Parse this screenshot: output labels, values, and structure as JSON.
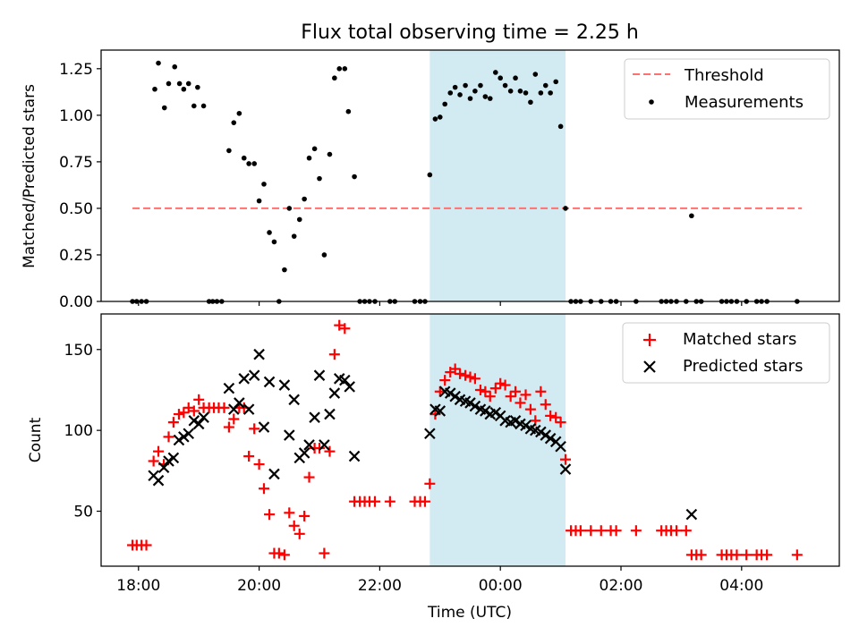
{
  "figure": {
    "title": "Flux total observing time = 2.25 h",
    "xlabel": "Time (UTC)"
  },
  "colors": {
    "highlight": "#add8e6",
    "threshold": "#ff7070",
    "measurement": "#000000",
    "matched": "#ff0000",
    "predicted": "#000000"
  },
  "chart_data": [
    {
      "type": "scatter",
      "ylabel": "Matched/Predicted stars",
      "x_unit": "hours since 18:00 UTC",
      "xlim": [
        -0.62,
        11.62
      ],
      "ylim": [
        0,
        1.35
      ],
      "yticks": [
        0,
        0.25,
        0.5,
        0.75,
        1.0,
        1.25
      ],
      "ytick_labels": [
        "0.00",
        "0.25",
        "0.50",
        "0.75",
        "1.00",
        "1.25"
      ],
      "grid": false,
      "legend": {
        "position": "top-right",
        "entries": [
          "Threshold",
          "Measurements"
        ]
      },
      "highlight_span": [
        4.83,
        7.08
      ],
      "threshold": {
        "name": "Threshold",
        "y": 0.5,
        "x_range": [
          -0.1,
          11.0
        ]
      },
      "measurements_name": "Measurements",
      "measurements": [
        [
          -0.1,
          0
        ],
        [
          -0.03,
          0
        ],
        [
          0.05,
          0
        ],
        [
          0.13,
          0
        ],
        [
          0.27,
          1.14
        ],
        [
          0.33,
          1.28
        ],
        [
          0.43,
          1.04
        ],
        [
          0.5,
          1.17
        ],
        [
          0.6,
          1.26
        ],
        [
          0.68,
          1.17
        ],
        [
          0.75,
          1.14
        ],
        [
          0.83,
          1.17
        ],
        [
          0.92,
          1.05
        ],
        [
          0.98,
          1.15
        ],
        [
          1.08,
          1.05
        ],
        [
          1.17,
          0
        ],
        [
          1.23,
          0
        ],
        [
          1.3,
          0
        ],
        [
          1.38,
          0
        ],
        [
          1.5,
          0.81
        ],
        [
          1.58,
          0.96
        ],
        [
          1.67,
          1.01
        ],
        [
          1.75,
          0.77
        ],
        [
          1.83,
          0.74
        ],
        [
          1.92,
          0.74
        ],
        [
          2.0,
          0.54
        ],
        [
          2.08,
          0.63
        ],
        [
          2.17,
          0.37
        ],
        [
          2.25,
          0.32
        ],
        [
          2.33,
          0
        ],
        [
          2.42,
          0.17
        ],
        [
          2.5,
          0.5
        ],
        [
          2.58,
          0.35
        ],
        [
          2.67,
          0.44
        ],
        [
          2.75,
          0.55
        ],
        [
          2.83,
          0.77
        ],
        [
          2.92,
          0.82
        ],
        [
          3.0,
          0.66
        ],
        [
          3.08,
          0.25
        ],
        [
          3.17,
          0.79
        ],
        [
          3.25,
          1.2
        ],
        [
          3.33,
          1.25
        ],
        [
          3.42,
          1.25
        ],
        [
          3.48,
          1.02
        ],
        [
          3.58,
          0.67
        ],
        [
          3.67,
          0
        ],
        [
          3.75,
          0
        ],
        [
          3.83,
          0
        ],
        [
          3.92,
          0
        ],
        [
          4.17,
          0
        ],
        [
          4.25,
          0
        ],
        [
          4.58,
          0
        ],
        [
          4.67,
          0
        ],
        [
          4.75,
          0
        ],
        [
          4.83,
          0.68
        ],
        [
          4.92,
          0.98
        ],
        [
          5.0,
          0.99
        ],
        [
          5.08,
          1.06
        ],
        [
          5.17,
          1.12
        ],
        [
          5.25,
          1.15
        ],
        [
          5.33,
          1.11
        ],
        [
          5.42,
          1.16
        ],
        [
          5.5,
          1.09
        ],
        [
          5.58,
          1.13
        ],
        [
          5.67,
          1.16
        ],
        [
          5.75,
          1.1
        ],
        [
          5.83,
          1.09
        ],
        [
          5.92,
          1.23
        ],
        [
          6.0,
          1.2
        ],
        [
          6.08,
          1.16
        ],
        [
          6.17,
          1.13
        ],
        [
          6.25,
          1.2
        ],
        [
          6.33,
          1.13
        ],
        [
          6.42,
          1.12
        ],
        [
          6.5,
          1.07
        ],
        [
          6.58,
          1.22
        ],
        [
          6.67,
          1.12
        ],
        [
          6.75,
          1.16
        ],
        [
          6.83,
          1.12
        ],
        [
          6.92,
          1.18
        ],
        [
          7.0,
          0.94
        ],
        [
          7.08,
          0.5
        ],
        [
          7.17,
          0
        ],
        [
          7.25,
          0
        ],
        [
          7.33,
          0
        ],
        [
          7.5,
          0
        ],
        [
          7.67,
          0
        ],
        [
          7.83,
          0
        ],
        [
          7.92,
          0
        ],
        [
          8.25,
          0
        ],
        [
          8.67,
          0
        ],
        [
          8.75,
          0
        ],
        [
          8.83,
          0
        ],
        [
          8.92,
          0
        ],
        [
          9.08,
          0
        ],
        [
          9.17,
          0.46
        ],
        [
          9.25,
          0
        ],
        [
          9.33,
          0
        ],
        [
          9.67,
          0
        ],
        [
          9.75,
          0
        ],
        [
          9.83,
          0
        ],
        [
          9.92,
          0
        ],
        [
          10.08,
          0
        ],
        [
          10.25,
          0
        ],
        [
          10.33,
          0
        ],
        [
          10.42,
          0
        ],
        [
          10.92,
          0
        ]
      ]
    },
    {
      "type": "scatter",
      "ylabel": "Count",
      "xlim": [
        -0.62,
        11.62
      ],
      "ylim": [
        16,
        172
      ],
      "yticks": [
        50,
        100,
        150
      ],
      "ytick_labels": [
        "50",
        "100",
        "150"
      ],
      "xticks": [
        0,
        2,
        4,
        6,
        8,
        10
      ],
      "xtick_labels": [
        "18:00",
        "20:00",
        "22:00",
        "00:00",
        "02:00",
        "04:00"
      ],
      "grid": false,
      "legend": {
        "position": "top-right",
        "entries": [
          "Matched stars",
          "Predicted stars"
        ]
      },
      "highlight_span": [
        4.83,
        7.08
      ],
      "series": [
        {
          "name": "Matched stars",
          "marker": "plus",
          "points": [
            [
              -0.1,
              29
            ],
            [
              -0.03,
              29
            ],
            [
              0.05,
              29
            ],
            [
              0.13,
              29
            ],
            [
              0.25,
              81
            ],
            [
              0.33,
              87
            ],
            [
              0.42,
              79
            ],
            [
              0.5,
              96
            ],
            [
              0.58,
              105
            ],
            [
              0.67,
              110
            ],
            [
              0.75,
              111
            ],
            [
              0.83,
              114
            ],
            [
              0.92,
              112
            ],
            [
              1.0,
              119
            ],
            [
              1.08,
              114
            ],
            [
              1.17,
              114
            ],
            [
              1.25,
              114
            ],
            [
              1.33,
              114
            ],
            [
              1.42,
              114
            ],
            [
              1.5,
              102
            ],
            [
              1.58,
              107
            ],
            [
              1.67,
              114
            ],
            [
              1.75,
              114
            ],
            [
              1.83,
              84
            ],
            [
              1.92,
              101
            ],
            [
              2.0,
              79
            ],
            [
              2.08,
              64
            ],
            [
              2.17,
              48
            ],
            [
              2.25,
              24
            ],
            [
              2.33,
              24
            ],
            [
              2.42,
              23
            ],
            [
              2.5,
              49
            ],
            [
              2.58,
              41
            ],
            [
              2.67,
              36
            ],
            [
              2.75,
              47
            ],
            [
              2.83,
              71
            ],
            [
              2.92,
              89
            ],
            [
              3.0,
              89
            ],
            [
              3.08,
              24
            ],
            [
              3.17,
              87
            ],
            [
              3.25,
              147
            ],
            [
              3.33,
              165
            ],
            [
              3.42,
              163
            ],
            [
              3.58,
              56
            ],
            [
              3.67,
              56
            ],
            [
              3.75,
              56
            ],
            [
              3.83,
              56
            ],
            [
              3.92,
              56
            ],
            [
              4.17,
              56
            ],
            [
              4.58,
              56
            ],
            [
              4.67,
              56
            ],
            [
              4.75,
              56
            ],
            [
              4.83,
              67
            ],
            [
              4.92,
              110
            ],
            [
              5.0,
              124
            ],
            [
              5.08,
              131
            ],
            [
              5.17,
              136
            ],
            [
              5.25,
              138
            ],
            [
              5.33,
              135
            ],
            [
              5.42,
              134
            ],
            [
              5.5,
              133
            ],
            [
              5.58,
              132
            ],
            [
              5.67,
              125
            ],
            [
              5.75,
              124
            ],
            [
              5.83,
              121
            ],
            [
              5.92,
              126
            ],
            [
              6.0,
              129
            ],
            [
              6.08,
              128
            ],
            [
              6.17,
              121
            ],
            [
              6.25,
              124
            ],
            [
              6.33,
              117
            ],
            [
              6.42,
              122
            ],
            [
              6.5,
              113
            ],
            [
              6.58,
              106
            ],
            [
              6.67,
              124
            ],
            [
              6.75,
              116
            ],
            [
              6.83,
              109
            ],
            [
              6.92,
              108
            ],
            [
              7.0,
              105
            ],
            [
              7.08,
              82
            ],
            [
              7.17,
              38
            ],
            [
              7.25,
              38
            ],
            [
              7.33,
              38
            ],
            [
              7.5,
              38
            ],
            [
              7.67,
              38
            ],
            [
              7.83,
              38
            ],
            [
              7.92,
              38
            ],
            [
              8.25,
              38
            ],
            [
              8.67,
              38
            ],
            [
              8.75,
              38
            ],
            [
              8.83,
              38
            ],
            [
              8.92,
              38
            ],
            [
              9.08,
              38
            ],
            [
              9.17,
              23
            ],
            [
              9.25,
              23
            ],
            [
              9.33,
              23
            ],
            [
              9.67,
              23
            ],
            [
              9.75,
              23
            ],
            [
              9.83,
              23
            ],
            [
              9.92,
              23
            ],
            [
              10.08,
              23
            ],
            [
              10.25,
              23
            ],
            [
              10.33,
              23
            ],
            [
              10.42,
              23
            ],
            [
              10.92,
              23
            ]
          ]
        },
        {
          "name": "Predicted stars",
          "marker": "x",
          "points": [
            [
              0.25,
              72
            ],
            [
              0.33,
              69
            ],
            [
              0.42,
              77
            ],
            [
              0.5,
              81
            ],
            [
              0.58,
              83
            ],
            [
              0.67,
              94
            ],
            [
              0.75,
              96
            ],
            [
              0.83,
              98
            ],
            [
              0.92,
              106
            ],
            [
              1.0,
              104
            ],
            [
              1.08,
              108
            ],
            [
              1.5,
              126
            ],
            [
              1.58,
              113
            ],
            [
              1.67,
              117
            ],
            [
              1.75,
              132
            ],
            [
              1.83,
              113
            ],
            [
              1.92,
              134
            ],
            [
              2.0,
              147
            ],
            [
              2.08,
              102
            ],
            [
              2.17,
              130
            ],
            [
              2.25,
              73
            ],
            [
              2.42,
              128
            ],
            [
              2.5,
              97
            ],
            [
              2.58,
              119
            ],
            [
              2.67,
              83
            ],
            [
              2.75,
              86
            ],
            [
              2.83,
              91
            ],
            [
              2.92,
              108
            ],
            [
              3.0,
              134
            ],
            [
              3.08,
              91
            ],
            [
              3.17,
              110
            ],
            [
              3.25,
              123
            ],
            [
              3.33,
              132
            ],
            [
              3.42,
              131
            ],
            [
              3.5,
              127
            ],
            [
              3.58,
              84
            ],
            [
              4.83,
              98
            ],
            [
              4.92,
              113
            ],
            [
              5.0,
              112
            ],
            [
              5.08,
              124
            ],
            [
              5.17,
              123
            ],
            [
              5.25,
              121
            ],
            [
              5.33,
              119
            ],
            [
              5.42,
              118
            ],
            [
              5.5,
              117
            ],
            [
              5.58,
              115
            ],
            [
              5.67,
              113
            ],
            [
              5.75,
              112
            ],
            [
              5.83,
              110
            ],
            [
              5.92,
              111
            ],
            [
              6.0,
              109
            ],
            [
              6.08,
              106
            ],
            [
              6.17,
              105
            ],
            [
              6.25,
              106
            ],
            [
              6.33,
              104
            ],
            [
              6.42,
              103
            ],
            [
              6.5,
              101
            ],
            [
              6.58,
              100
            ],
            [
              6.67,
              99
            ],
            [
              6.75,
              97
            ],
            [
              6.83,
              95
            ],
            [
              6.92,
              93
            ],
            [
              7.0,
              90
            ],
            [
              7.08,
              76
            ],
            [
              9.17,
              48
            ]
          ]
        }
      ]
    }
  ]
}
